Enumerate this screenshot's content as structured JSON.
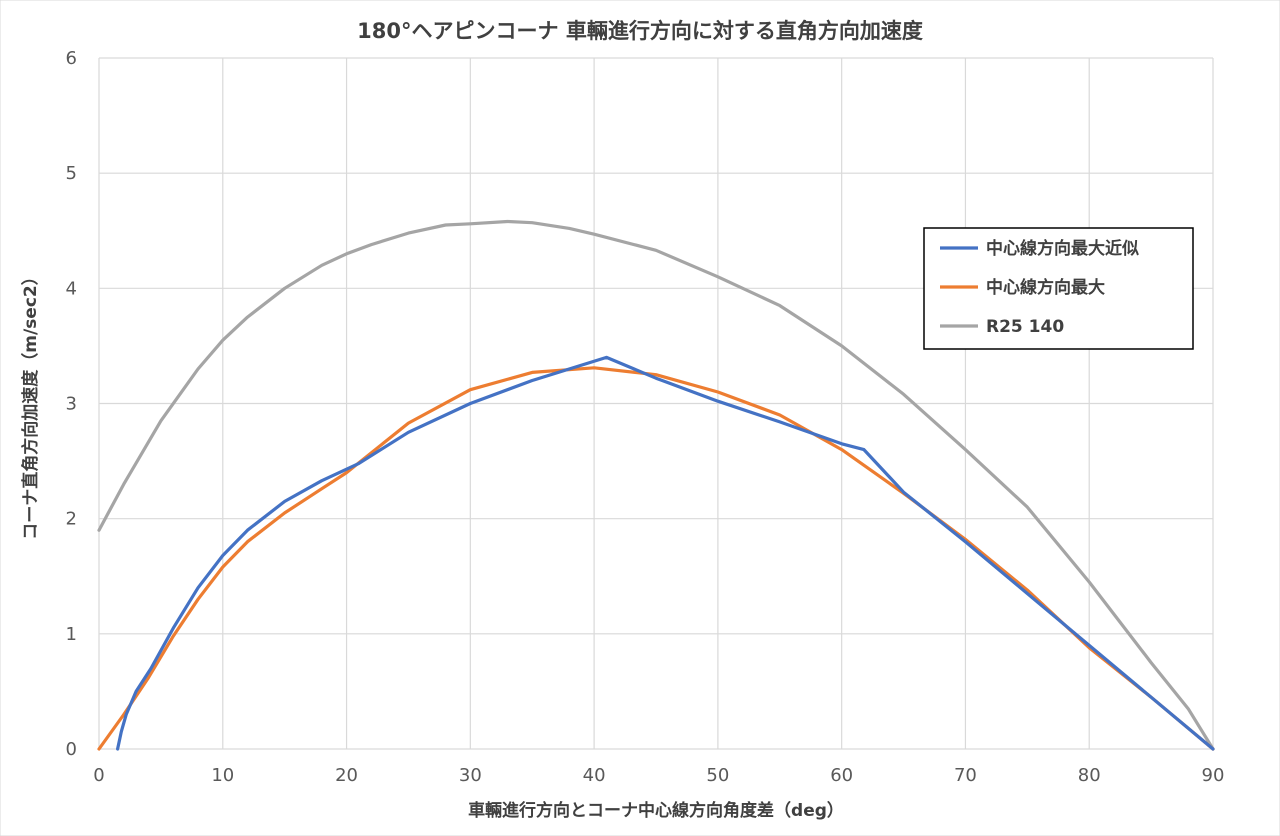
{
  "chart_data": {
    "type": "line",
    "title": "180°ヘアピンコーナ 車輛進行方向に対する直角方向加速度",
    "xlabel": "車輛進行方向とコーナ中心線方向角度差（deg）",
    "ylabel": "コーナ直角方向加速度（m/sec2）",
    "xlim": [
      0,
      90
    ],
    "ylim": [
      0,
      6
    ],
    "xticks": [
      0,
      10,
      20,
      30,
      40,
      50,
      60,
      70,
      80,
      90
    ],
    "yticks": [
      0,
      1,
      2,
      3,
      4,
      5,
      6
    ],
    "grid": true,
    "legend_position": "right",
    "series": [
      {
        "name": "中心線方向最大近似",
        "color": "#4472c4",
        "points": [
          [
            1.5,
            0
          ],
          [
            1.8,
            0.15
          ],
          [
            2.2,
            0.3
          ],
          [
            3,
            0.5
          ],
          [
            4.2,
            0.7
          ],
          [
            6,
            1.05
          ],
          [
            8,
            1.4
          ],
          [
            10,
            1.68
          ],
          [
            12,
            1.9
          ],
          [
            15,
            2.15
          ],
          [
            18,
            2.33
          ],
          [
            21,
            2.48
          ],
          [
            25,
            2.75
          ],
          [
            30,
            3.0
          ],
          [
            35,
            3.2
          ],
          [
            41,
            3.4
          ],
          [
            45,
            3.22
          ],
          [
            50,
            3.02
          ],
          [
            55,
            2.84
          ],
          [
            60,
            2.65
          ],
          [
            61.8,
            2.6
          ],
          [
            65,
            2.23
          ],
          [
            70,
            1.8
          ],
          [
            75,
            1.35
          ],
          [
            80,
            0.9
          ],
          [
            85,
            0.45
          ],
          [
            90,
            0
          ]
        ]
      },
      {
        "name": "中心線方向最大",
        "color": "#ed7d31",
        "points": [
          [
            0,
            0
          ],
          [
            2,
            0.3
          ],
          [
            4,
            0.62
          ],
          [
            6,
            0.98
          ],
          [
            8,
            1.3
          ],
          [
            10,
            1.58
          ],
          [
            12,
            1.8
          ],
          [
            15,
            2.05
          ],
          [
            18,
            2.26
          ],
          [
            20,
            2.4
          ],
          [
            25,
            2.83
          ],
          [
            30,
            3.12
          ],
          [
            35,
            3.27
          ],
          [
            40,
            3.31
          ],
          [
            45,
            3.25
          ],
          [
            50,
            3.1
          ],
          [
            55,
            2.9
          ],
          [
            60,
            2.6
          ],
          [
            65,
            2.22
          ],
          [
            70,
            1.82
          ],
          [
            75,
            1.38
          ],
          [
            80,
            0.88
          ],
          [
            85,
            0.45
          ],
          [
            90,
            0
          ]
        ]
      },
      {
        "name": "R25 140",
        "color": "#a5a5a5",
        "points": [
          [
            0,
            1.9
          ],
          [
            2,
            2.3
          ],
          [
            5,
            2.85
          ],
          [
            8,
            3.3
          ],
          [
            10,
            3.55
          ],
          [
            12,
            3.75
          ],
          [
            15,
            4.0
          ],
          [
            18,
            4.2
          ],
          [
            20,
            4.3
          ],
          [
            22,
            4.38
          ],
          [
            25,
            4.48
          ],
          [
            28,
            4.55
          ],
          [
            30,
            4.56
          ],
          [
            33,
            4.58
          ],
          [
            35,
            4.57
          ],
          [
            38,
            4.52
          ],
          [
            40,
            4.47
          ],
          [
            45,
            4.33
          ],
          [
            50,
            4.1
          ],
          [
            55,
            3.85
          ],
          [
            60,
            3.5
          ],
          [
            65,
            3.08
          ],
          [
            70,
            2.6
          ],
          [
            75,
            2.1
          ],
          [
            80,
            1.45
          ],
          [
            85,
            0.75
          ],
          [
            88,
            0.35
          ],
          [
            90,
            0
          ]
        ]
      }
    ]
  }
}
